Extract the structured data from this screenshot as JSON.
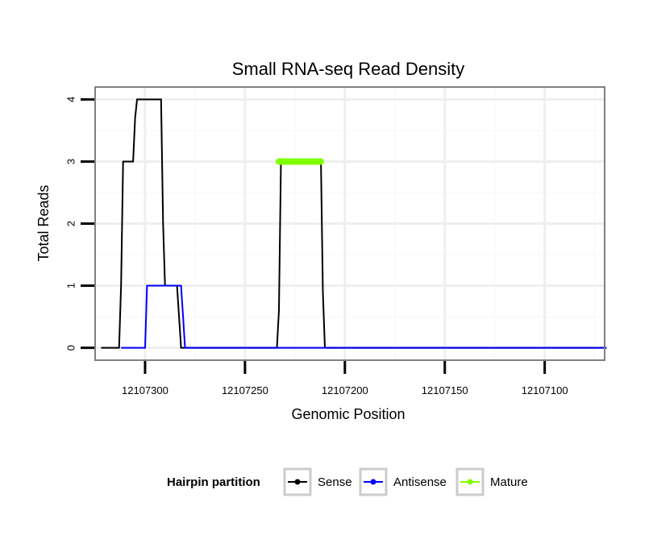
{
  "chart_data": {
    "type": "line",
    "title": "Small RNA-seq Read Density",
    "xlabel": "Genomic Position",
    "ylabel": "Total Reads",
    "x_reversed": true,
    "xlim": [
      12107325,
      12107070
    ],
    "ylim": [
      -0.2,
      4.2
    ],
    "x_ticks": [
      12107300,
      12107250,
      12107200,
      12107150,
      12107100
    ],
    "x_tick_labels": [
      "12107300",
      "12107250",
      "12107200",
      "12107150",
      "12107100"
    ],
    "y_ticks": [
      0,
      1,
      2,
      3,
      4
    ],
    "y_tick_labels": [
      "0",
      "1",
      "2",
      "3",
      "4"
    ],
    "grid": true,
    "legend_position": "bottom",
    "legend_title": "Hairpin partition",
    "series": [
      {
        "name": "Sense",
        "color": "#000000",
        "x": [
          12107322,
          12107313,
          12107312,
          12107311,
          12107306,
          12107305,
          12107304,
          12107292,
          12107291,
          12107290,
          12107284,
          12107283,
          12107282,
          12107234,
          12107233,
          12107232,
          12107212,
          12107211,
          12107210,
          12107069
        ],
        "y": [
          0,
          0,
          1,
          3,
          3,
          3.7,
          4,
          4,
          2,
          1,
          1,
          0.5,
          0,
          0,
          0.6,
          3,
          3,
          0.9,
          0,
          0
        ]
      },
      {
        "name": "Antisense",
        "color": "#0000ff",
        "x": [
          12107312,
          12107300,
          12107299,
          12107282,
          12107281,
          12107280,
          12107069
        ],
        "y": [
          0,
          0,
          1,
          1,
          0.5,
          0,
          0
        ]
      },
      {
        "name": "Mature",
        "color": "#7fff00",
        "x": [
          12107233,
          12107212
        ],
        "y": [
          3,
          3
        ]
      }
    ]
  }
}
